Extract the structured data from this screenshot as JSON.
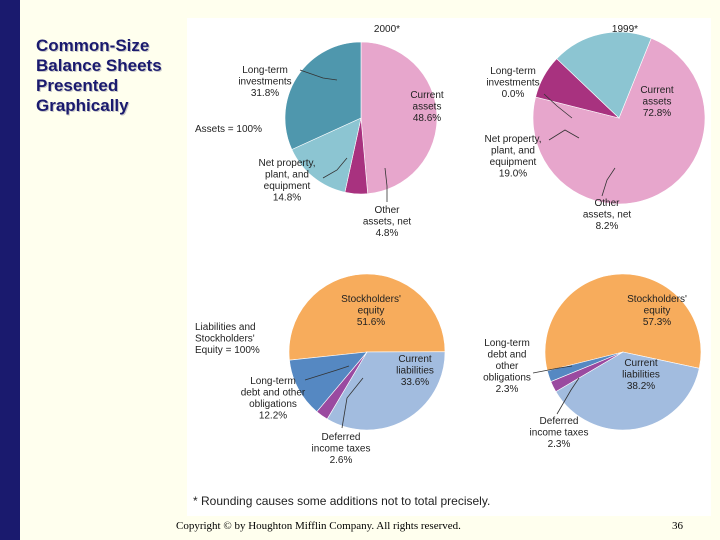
{
  "slide": {
    "title_lines": [
      "Common-Size",
      "Balance Sheets",
      "Presented",
      "Graphically"
    ],
    "footnote": "* Rounding causes some additions not to total precisely.",
    "copyright": "Copyright © by Houghton Mifflin Company. All rights reserved.",
    "page_number": "36"
  },
  "colors": {
    "current_assets": "#e7a6cc",
    "long_term_investments": "#4f97ad",
    "net_property": "#8cc5d2",
    "other_assets": "#a8327f",
    "stockholders_equity": "#f7ac5c",
    "current_liabilities": "#a2bcdf",
    "long_term_debt": "#5588c2",
    "deferred_taxes": "#9a4aa0",
    "sidebar": "#1a1a6e",
    "slide_background": "#ffffee"
  },
  "chart_data": [
    {
      "type": "pie",
      "title": "2000*",
      "center_label": "Assets = 100%",
      "slices": [
        {
          "key": "current_assets",
          "lines": [
            "Current",
            "assets",
            "48.6%"
          ],
          "value": 48.6
        },
        {
          "key": "other_assets",
          "lines": [
            "Other",
            "assets, net",
            "4.8%"
          ],
          "value": 4.8
        },
        {
          "key": "net_property",
          "lines": [
            "Net property,",
            "plant, and",
            "equipment",
            "14.8%"
          ],
          "value": 14.8
        },
        {
          "key": "long_term_investments",
          "lines": [
            "Long-term",
            "investments",
            "31.8%"
          ],
          "value": 31.8
        }
      ]
    },
    {
      "type": "pie",
      "title": "1999*",
      "slices": [
        {
          "key": "current_assets",
          "lines": [
            "Current",
            "assets",
            "72.8%"
          ],
          "value": 72.8
        },
        {
          "key": "other_assets",
          "lines": [
            "Other",
            "assets, net",
            "8.2%"
          ],
          "value": 8.2
        },
        {
          "key": "net_property",
          "lines": [
            "Net property,",
            "plant, and",
            "equipment",
            "19.0%"
          ],
          "value": 19.0
        },
        {
          "key": "long_term_investments",
          "lines": [
            "Long-term",
            "investments",
            "0.0%"
          ],
          "value": 0.0
        }
      ]
    },
    {
      "type": "pie",
      "center_label_lines": [
        "Liabilities and",
        "Stockholders'",
        "Equity = 100%"
      ],
      "slices": [
        {
          "key": "stockholders_equity",
          "lines": [
            "Stockholders'",
            "equity",
            "51.6%"
          ],
          "value": 51.6
        },
        {
          "key": "current_liabilities",
          "lines": [
            "Current",
            "liabilities",
            "33.6%"
          ],
          "value": 33.6
        },
        {
          "key": "deferred_taxes",
          "lines": [
            "Deferred",
            "income taxes",
            "2.6%"
          ],
          "value": 2.6
        },
        {
          "key": "long_term_debt",
          "lines": [
            "Long-term",
            "debt and other",
            "obligations",
            "12.2%"
          ],
          "value": 12.2
        }
      ]
    },
    {
      "type": "pie",
      "slices": [
        {
          "key": "stockholders_equity",
          "lines": [
            "Stockholders'",
            "equity",
            "57.3%"
          ],
          "value": 57.3
        },
        {
          "key": "current_liabilities",
          "lines": [
            "Current",
            "liabilities",
            "38.2%"
          ],
          "value": 38.2
        },
        {
          "key": "deferred_taxes",
          "lines": [
            "Deferred",
            "income taxes",
            "2.3%"
          ],
          "value": 2.3
        },
        {
          "key": "long_term_debt",
          "lines": [
            "Long-term",
            "debt and",
            "other",
            "obligations",
            "2.3%"
          ],
          "value": 2.3
        }
      ]
    }
  ]
}
